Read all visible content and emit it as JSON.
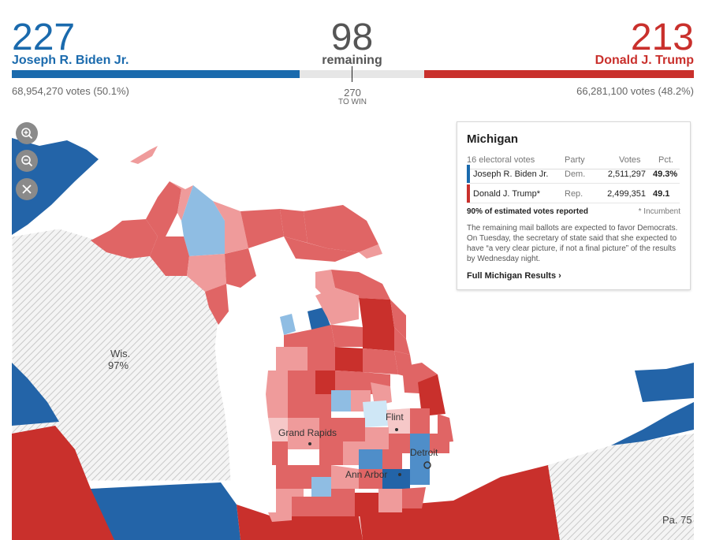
{
  "tally": {
    "biden_ev": "227",
    "biden_name": "Joseph R. Biden Jr.",
    "biden_votes": "68,954,270 votes (50.1%)",
    "remaining_ev": "98",
    "remaining_label": "remaining",
    "win_number": "270",
    "win_label": "TO WIN",
    "trump_ev": "213",
    "trump_name": "Donald J. Trump",
    "trump_votes": "66,281,100 votes (48.2%)",
    "colors": {
      "dem": "#1a6aad",
      "rep": "#c9302c",
      "remaining": "#e6e6e6"
    },
    "bar_share": {
      "dem": 227,
      "remaining": 98,
      "rep": 213
    }
  },
  "map": {
    "labels": {
      "wisconsin": "Wis.",
      "wisconsin_pct": "97%",
      "pennsylvania": "Pa. 75",
      "grand_rapids": "Grand Rapids",
      "flint": "Flint",
      "detroit": "Detroit",
      "ann_arbor": "Ann Arbor"
    },
    "controls": [
      "zoom-in-icon",
      "zoom-out-icon",
      "close-icon"
    ],
    "colors": {
      "dem_dark": "#2364a8",
      "dem_mid": "#4f8ec9",
      "dem_light": "#8fbde3",
      "dem_pale": "#cfe7f6",
      "rep_dark": "#c9302c",
      "rep_mid": "#e06565",
      "rep_light": "#ef9b9b",
      "rep_pale": "#f6c8c8",
      "water": "#ffffff",
      "hatch": "#d7d7d7"
    }
  },
  "panel": {
    "state": "Michigan",
    "electoral_votes": "16 electoral votes",
    "col_party": "Party",
    "col_votes": "Votes",
    "col_pct": "Pct.",
    "rows": [
      {
        "name": "Joseph R. Biden Jr.",
        "party": "Dem.",
        "votes": "2,511,297",
        "pct": "49.3%"
      },
      {
        "name": "Donald J. Trump*",
        "party": "Rep.",
        "votes": "2,499,351",
        "pct": "49.1"
      }
    ],
    "reported": "90% of estimated votes reported",
    "incumbent_note": "* Incumbent",
    "note": "The remaining mail ballots are expected to favor Democrats. On Tuesday, the secretary of state said that she expected to have “a very clear picture, if not a final picture” of the results by Wednesday night.",
    "link": "Full Michigan Results ›"
  }
}
